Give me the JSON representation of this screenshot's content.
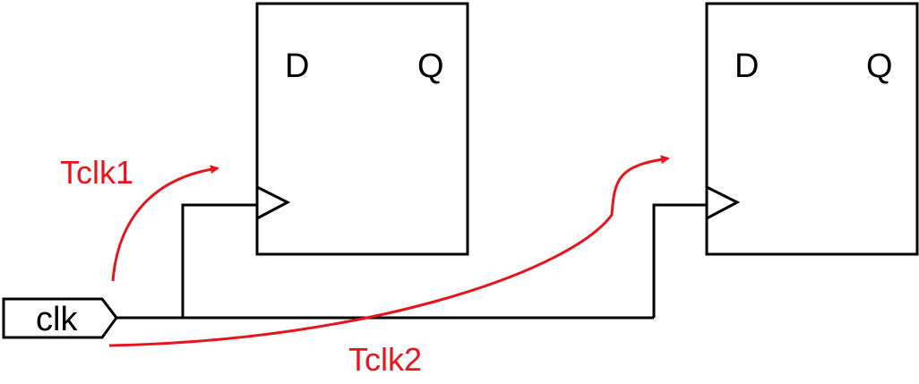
{
  "colors": {
    "line": "#000000",
    "timing": "#e8141c"
  },
  "clock_port": {
    "label": "clk"
  },
  "flip_flops": [
    {
      "d_label": "D",
      "q_label": "Q"
    },
    {
      "d_label": "D",
      "q_label": "Q"
    }
  ],
  "timing_paths": [
    {
      "label": "Tclk1"
    },
    {
      "label": "Tclk2"
    }
  ]
}
